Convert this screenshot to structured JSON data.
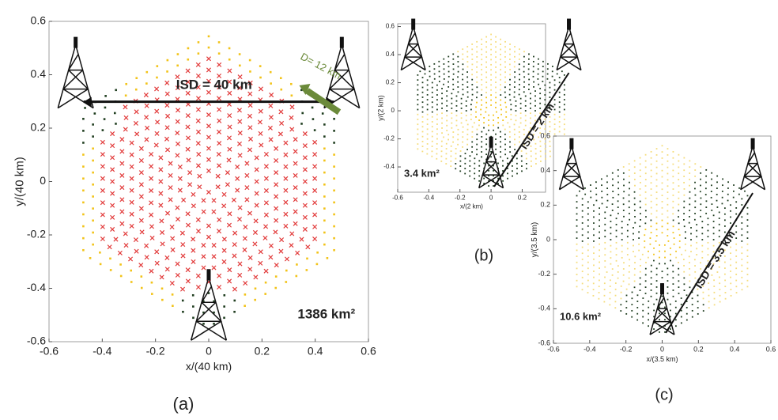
{
  "chart_data": [
    {
      "type": "scatter",
      "caption": "(a)",
      "x_label": "x/(40 km)",
      "y_label": "y/(40 km)",
      "xlim": [
        -0.6,
        0.6
      ],
      "ylim": [
        -0.6,
        0.6
      ],
      "xticks": [
        -0.6,
        -0.4,
        -0.2,
        0,
        0.2,
        0.4,
        0.6
      ],
      "yticks": [
        -0.6,
        -0.4,
        -0.2,
        0,
        0.2,
        0.4,
        0.6
      ],
      "annotations": [
        "ISD = 40 km",
        "D= 12 km",
        "1386 km²"
      ],
      "point_colors": [
        "#e23b3b",
        "#f2c318",
        "#1f3d1f"
      ]
    },
    {
      "type": "scatter",
      "caption": "(b)",
      "x_label": "x/(2 km)",
      "y_label": "y/(2 km)",
      "xlim": [
        -0.6,
        0.35
      ],
      "ylim": [
        -0.58,
        0.62
      ],
      "xticks": [
        -0.6,
        -0.4,
        -0.2,
        0,
        0.2
      ],
      "yticks": [
        -0.4,
        -0.2,
        0,
        0.2,
        0.4,
        0.6
      ],
      "annotations": [
        "ISD = 2 km",
        "3.4 km²"
      ],
      "point_colors": [
        "#f2c318",
        "#f5dc7a",
        "#1f3d1f"
      ]
    },
    {
      "type": "scatter",
      "caption": "(c)",
      "x_label": "x/(3.5 km)",
      "y_label": "y/(3.5 km)",
      "xlim": [
        -0.6,
        0.6
      ],
      "ylim": [
        -0.6,
        0.6
      ],
      "xticks": [
        -0.6,
        -0.4,
        -0.2,
        0,
        0.2,
        0.4,
        0.6
      ],
      "yticks": [
        -0.6,
        -0.4,
        -0.2,
        0,
        0.2,
        0.4,
        0.6
      ],
      "annotations": [
        "ISD = 3.5 km",
        "10.6 km²"
      ],
      "point_colors": [
        "#f2c318",
        "#f5dc7a",
        "#1f3d1f"
      ]
    }
  ]
}
